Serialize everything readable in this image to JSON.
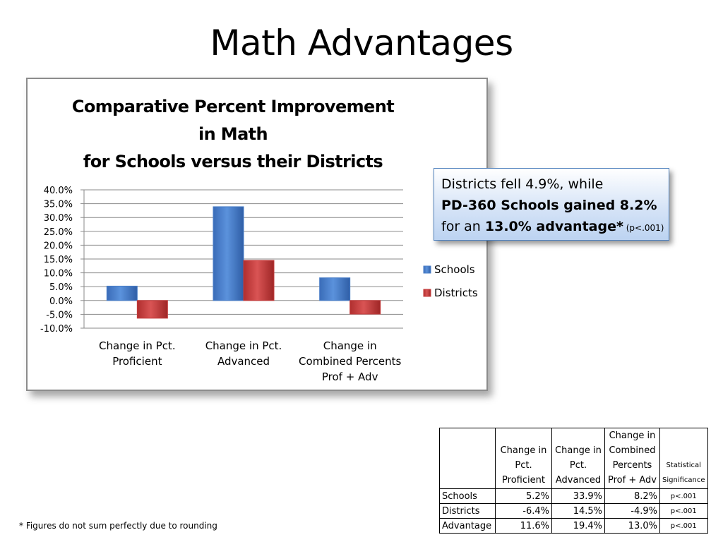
{
  "slide": {
    "title": "Math Advantages",
    "footnote": "* Figures do not sum perfectly due to rounding"
  },
  "callout": {
    "line1": "Districts fell 4.9%, while",
    "line2": "PD-360 Schools gained 8.2%",
    "line3_prefix": "for an ",
    "line3_bold": "13.0% advantage",
    "line3_star": "*",
    "line3_small": " (p<.001)"
  },
  "chart_data": {
    "type": "bar",
    "title": [
      "Comparative Percent Improvement",
      "in Math",
      "for Schools versus their Districts"
    ],
    "categories": [
      [
        "Change in Pct.",
        "Proficient"
      ],
      [
        "Change in Pct.",
        "Advanced"
      ],
      [
        "Change in",
        "Combined Percents",
        "Prof + Adv"
      ]
    ],
    "series": [
      {
        "name": "Schools",
        "values": [
          5.2,
          33.9,
          8.2
        ],
        "color": "#4a7ec7"
      },
      {
        "name": "Districts",
        "values": [
          -6.4,
          14.5,
          -4.9
        ],
        "color": "#c43a3a"
      }
    ],
    "ylim": [
      -10,
      40
    ],
    "yticks": [
      "40.0%",
      "35.0%",
      "30.0%",
      "25.0%",
      "20.0%",
      "15.0%",
      "10.0%",
      "5.0%",
      "0.0%",
      "-5.0%",
      "-10.0%"
    ],
    "ytick_values": [
      40,
      35,
      30,
      25,
      20,
      15,
      10,
      5,
      0,
      -5,
      -10
    ],
    "grid": true,
    "legend": "right"
  },
  "table": {
    "headers": [
      [
        "Change in",
        "Pct.",
        "Proficient"
      ],
      [
        "Change in",
        "Pct.",
        "Advanced"
      ],
      [
        "Change in",
        "Combined",
        "Percents",
        "Prof + Adv"
      ],
      [
        "Statistical",
        "Significance"
      ]
    ],
    "rows": [
      {
        "label": "Schools",
        "values": [
          "5.2%",
          "33.9%",
          "8.2%"
        ],
        "sig": "p<.001"
      },
      {
        "label": "Districts",
        "values": [
          "-6.4%",
          "14.5%",
          "-4.9%"
        ],
        "sig": "p<.001"
      },
      {
        "label": "Advantage",
        "values": [
          "11.6%",
          "19.4%",
          "13.0%"
        ],
        "sig": "p<.001"
      }
    ]
  }
}
